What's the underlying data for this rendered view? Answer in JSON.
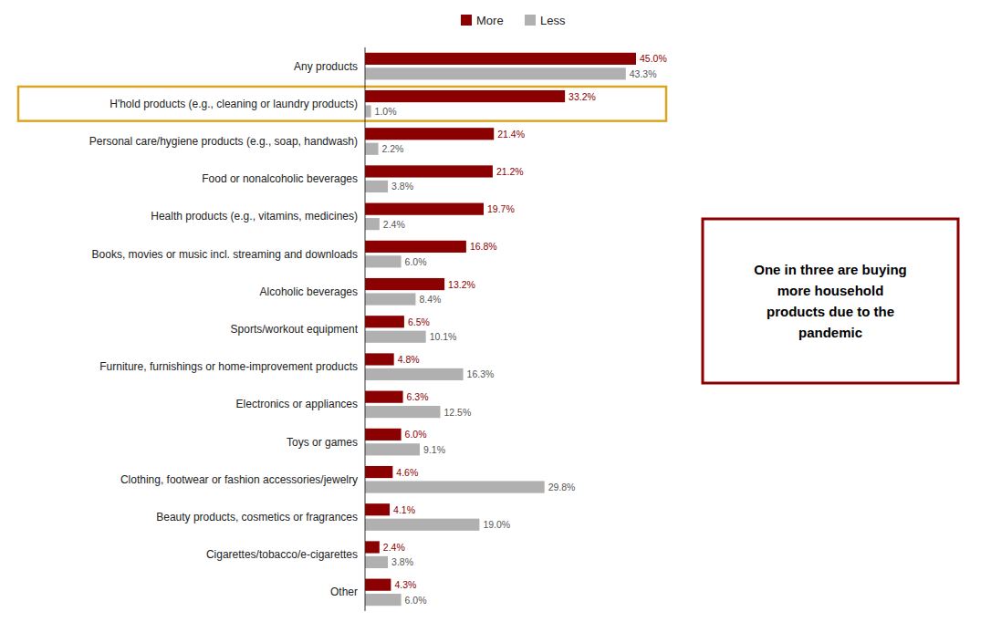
{
  "chart_data": {
    "type": "bar",
    "orientation": "horizontal",
    "categories": [
      "Any products",
      "H'hold products (e.g., cleaning or laundry products)",
      "Personal care/hygiene products (e.g., soap, handwash)",
      "Food or nonalcoholic beverages",
      "Health products (e.g., vitamins, medicines)",
      "Books, movies or music incl. streaming and downloads",
      "Alcoholic beverages",
      "Sports/workout equipment",
      "Furniture, furnishings or home-improvement products",
      "Electronics or appliances",
      "Toys or games",
      "Clothing, footwear or fashion accessories/jewelry",
      "Beauty products, cosmetics or fragrances",
      "Cigarettes/tobacco/e-cigarettes",
      "Other"
    ],
    "series": [
      {
        "name": "More",
        "color": "#8B0000",
        "values": [
          45.0,
          33.2,
          21.4,
          21.2,
          19.7,
          16.8,
          13.2,
          6.5,
          4.8,
          6.3,
          6.0,
          4.6,
          4.1,
          2.4,
          4.3
        ],
        "value_labels": [
          "45.0%",
          "33.2%",
          "21.4%",
          "21.2%",
          "19.7%",
          "16.8%",
          "13.2%",
          "6.5%",
          "4.8%",
          "6.3%",
          "6.0%",
          "4.6%",
          "4.1%",
          "2.4%",
          "4.3%"
        ]
      },
      {
        "name": "Less",
        "color": "#B0B0B0",
        "values": [
          43.3,
          1.0,
          2.2,
          3.8,
          2.4,
          6.0,
          8.4,
          10.1,
          16.3,
          12.5,
          9.1,
          29.8,
          19.0,
          3.8,
          6.0
        ],
        "value_labels": [
          "43.3%",
          "1.0%",
          "2.2%",
          "3.8%",
          "2.4%",
          "6.0%",
          "8.4%",
          "10.1%",
          "16.3%",
          "12.5%",
          "9.1%",
          "29.8%",
          "19.0%",
          "3.8%",
          "6.0%"
        ]
      }
    ],
    "xlim": [
      0,
      50
    ],
    "data_labels": true,
    "tick_labels": "y",
    "grid": false,
    "legend": "top",
    "annotation": "One in three are buying\nmore household\nproducts due to the\npandemic"
  }
}
